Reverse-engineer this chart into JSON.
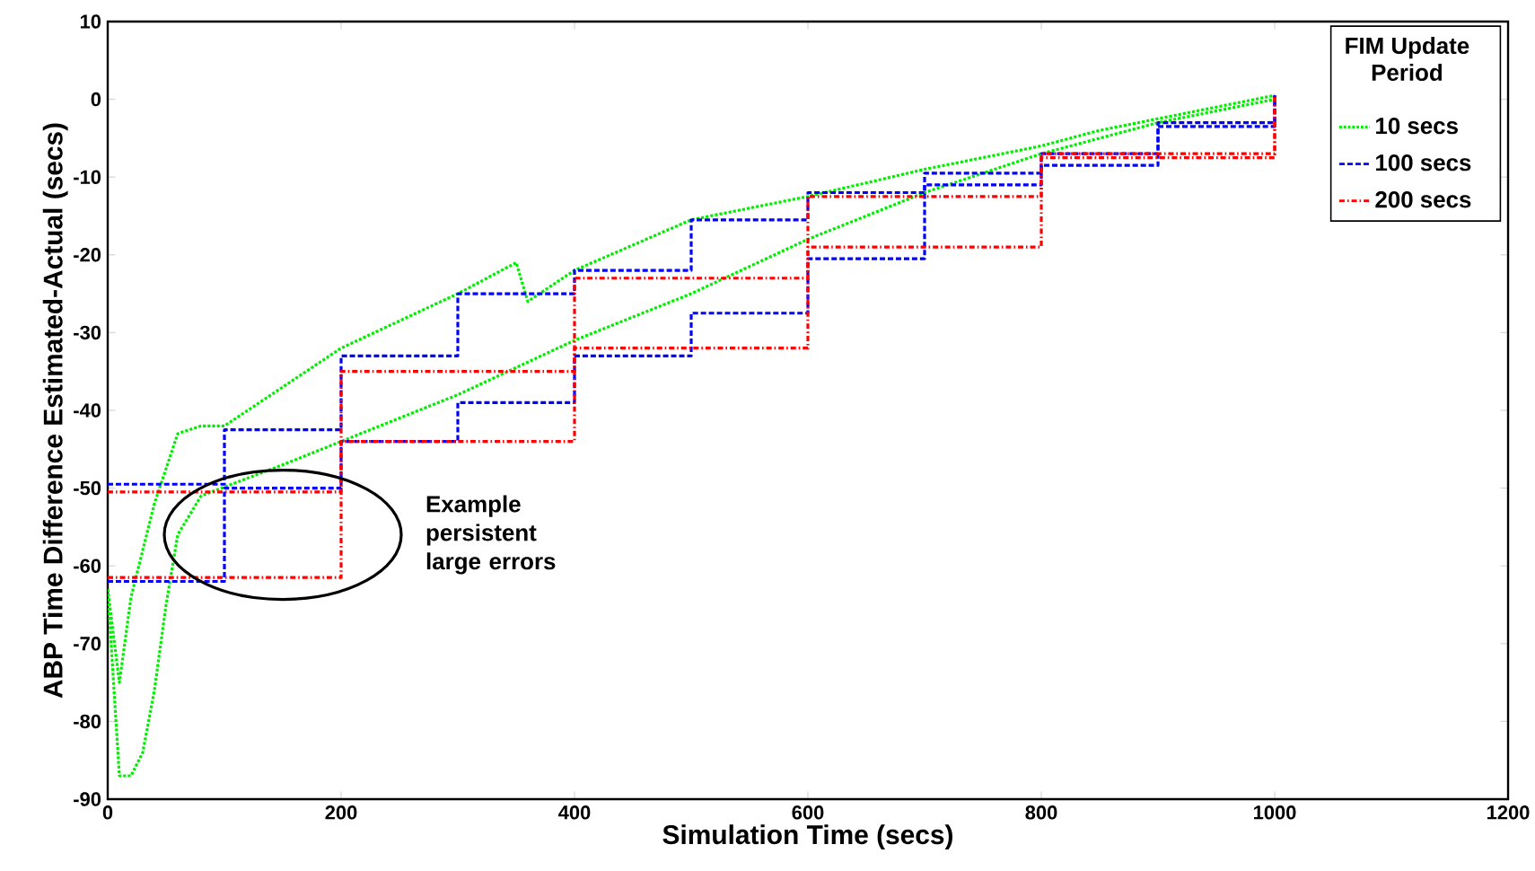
{
  "chart_data": {
    "type": "line",
    "xlabel": "Simulation Time (secs)",
    "ylabel": "ABP Time Difference Estimated-Actual (secs)",
    "legend_title": "FIM Update Period",
    "legend": "top right",
    "grid": false,
    "marker": "none",
    "xlim": [
      0,
      1200
    ],
    "xticks": [
      0,
      200,
      400,
      600,
      800,
      1000,
      1200
    ],
    "ylim": [
      -90,
      10
    ],
    "yticks": [
      -90,
      -80,
      -70,
      -60,
      -50,
      -40,
      -30,
      -20,
      -10,
      0,
      10
    ],
    "series": [
      {
        "name": "10 secs",
        "line_style": "dotted",
        "color": "#00ee00",
        "x": [
          0,
          10,
          20,
          40,
          60,
          80,
          100,
          200,
          300,
          350,
          360,
          400,
          500,
          600,
          700,
          800,
          850,
          1000
        ],
        "values": [
          -63,
          -75,
          -64,
          -52,
          -43,
          -42,
          -42,
          -32,
          -25,
          -21,
          -26,
          -22,
          -15.5,
          -12.5,
          -9,
          -6,
          -4,
          0.5
        ]
      },
      {
        "line_style": "dotted",
        "color": "#00ee00",
        "x": [
          0,
          10,
          20,
          30,
          40,
          50,
          60,
          80,
          150,
          200,
          300,
          400,
          500,
          600,
          700,
          800,
          900,
          1000
        ],
        "values": [
          -63,
          -87,
          -87,
          -84,
          -76,
          -65,
          -56,
          -51,
          -47,
          -44,
          -38,
          -31,
          -25,
          -18,
          -12,
          -7,
          -3,
          0
        ]
      },
      {
        "name": "100 secs",
        "type": "step",
        "line_style": "dashed",
        "color": "#0000ff",
        "x": [
          0,
          100,
          200,
          300,
          400,
          500,
          600,
          700,
          800,
          900,
          1000
        ],
        "values": [
          -49.5,
          -42.5,
          -33,
          -25,
          -22,
          -15.5,
          -12,
          -9.5,
          -7,
          -3,
          0.5
        ]
      },
      {
        "type": "step",
        "line_style": "dashed",
        "color": "#0000ff",
        "x": [
          0,
          100,
          200,
          300,
          400,
          500,
          600,
          700,
          800,
          900,
          1000
        ],
        "values": [
          -62,
          -50,
          -44,
          -39,
          -33,
          -27.5,
          -20.5,
          -11,
          -8.5,
          -3.5,
          0.5
        ]
      },
      {
        "name": "200 secs",
        "type": "step",
        "line_style": "dashdot",
        "color": "#ff0000",
        "x": [
          0,
          200,
          400,
          600,
          800,
          1000
        ],
        "values": [
          -50.5,
          -35,
          -23,
          -12.5,
          -7,
          0.5
        ]
      },
      {
        "type": "step",
        "line_style": "dashdot",
        "color": "#ff0000",
        "x": [
          0,
          200,
          400,
          600,
          800,
          1000
        ],
        "values": [
          -61.5,
          -44,
          -32,
          -19,
          -7.5,
          0.5
        ]
      }
    ],
    "annotations": [
      "Example persistent large errors"
    ]
  }
}
